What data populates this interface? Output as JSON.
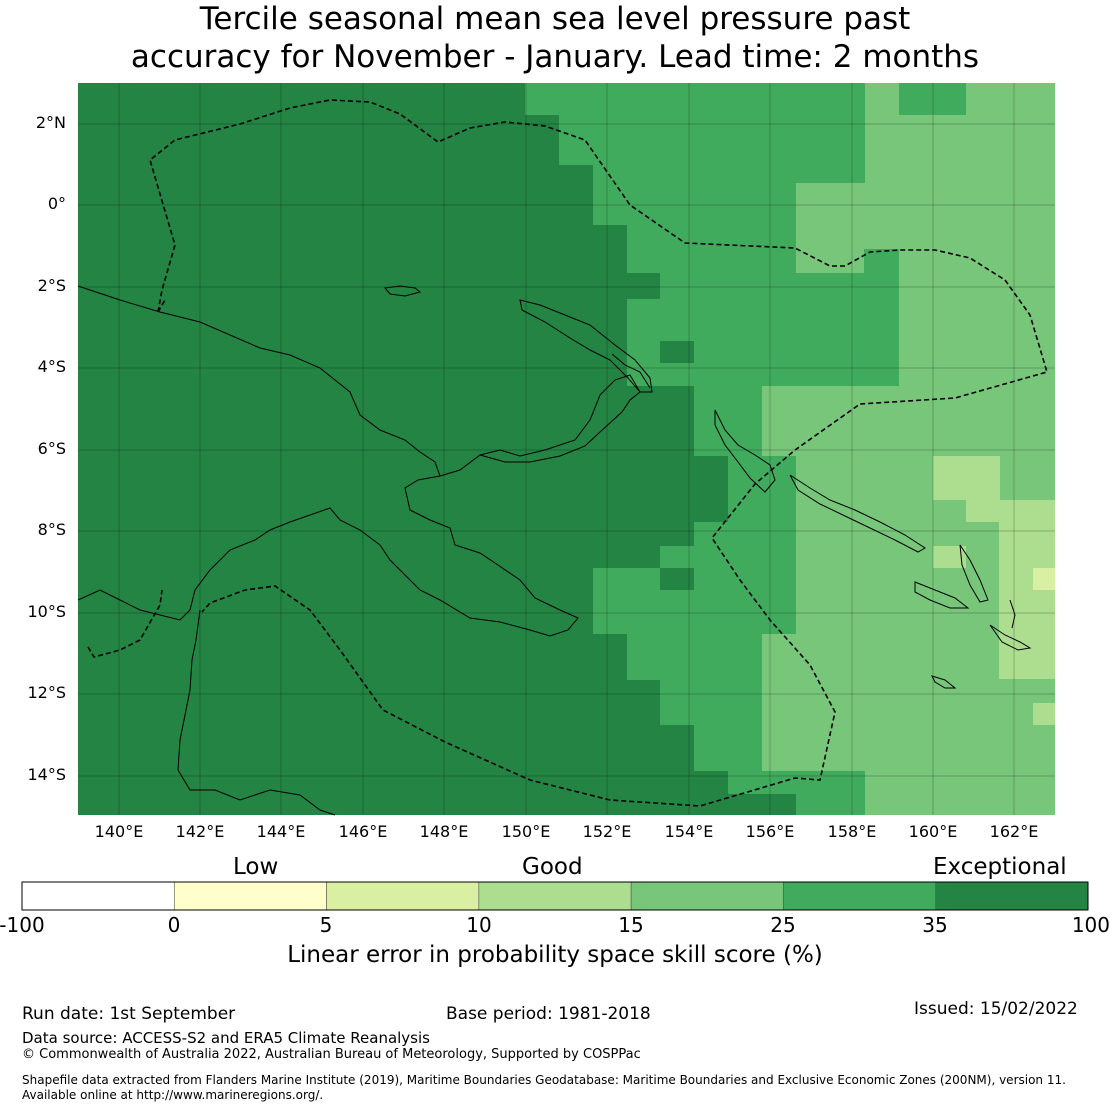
{
  "title_line1": "Tercile seasonal mean sea level pressure past",
  "title_line2": "accuracy for November - January. Lead time: 2 months",
  "lat_labels": [
    "2°N",
    "0°",
    "2°S",
    "4°S",
    "6°S",
    "8°S",
    "10°S",
    "12°S",
    "14°S"
  ],
  "lon_labels": [
    "140°E",
    "142°E",
    "144°E",
    "146°E",
    "148°E",
    "150°E",
    "152°E",
    "154°E",
    "156°E",
    "158°E",
    "160°E",
    "162°E"
  ],
  "legend": {
    "category_low": "Low",
    "category_good": "Good",
    "category_exceptional": "Exceptional",
    "ticks": [
      "-100",
      "0",
      "5",
      "10",
      "15",
      "25",
      "35",
      "100"
    ],
    "colors": [
      "#ffffff",
      "#ffffcc",
      "#d9f0a3",
      "#addd8e",
      "#78c679",
      "#41ab5d",
      "#238443"
    ],
    "caption": "Linear error in probability space skill score (%)"
  },
  "footer": {
    "run_date": "Run date: 1st September",
    "base_period": "Base period: 1981-2018",
    "issued": "Issued: 15/02/2022",
    "data_source": "Data source: ACCESS-S2 and ERA5 Climate Reanalysis",
    "copyright": "© Commonwealth of Australia 2022, Australian Bureau of Meteorology, Supported by COSPPac",
    "shapefile_line1": "Shapefile data extracted from Flanders Marine Institute (2019), Maritime Boundaries Geodatabase: Maritime Boundaries and Exclusive Economic Zones (200NM), version 11.",
    "shapefile_line2": "Available online at http://www.marineregions.org/."
  }
}
